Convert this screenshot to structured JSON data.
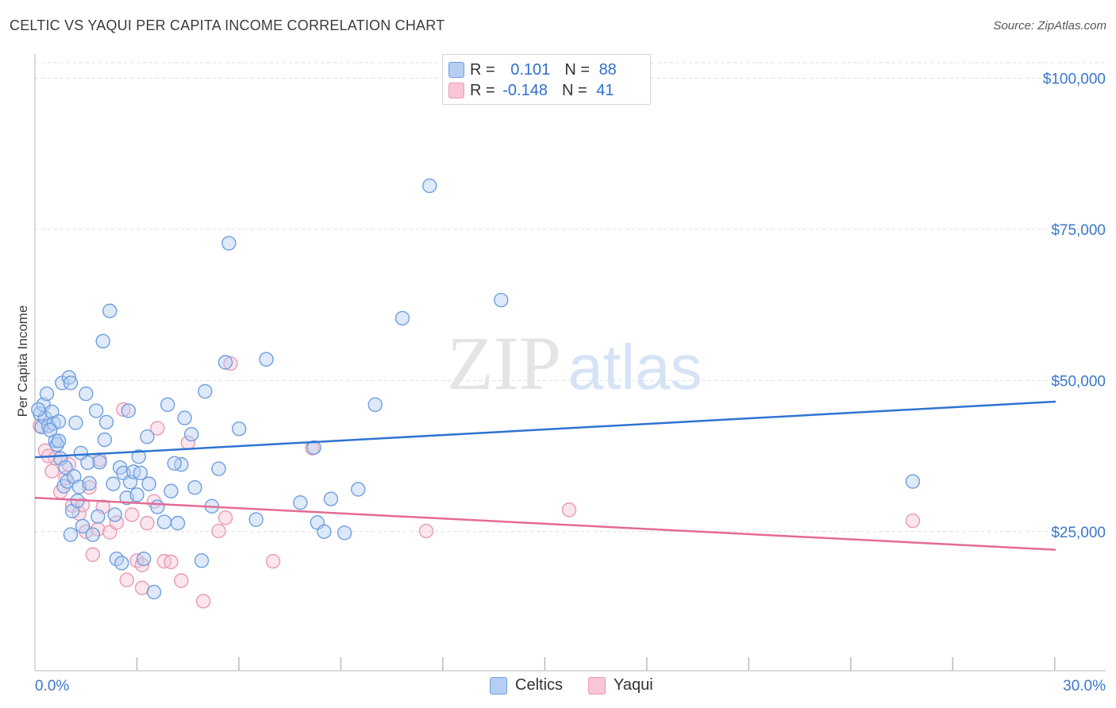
{
  "title": "CELTIC VS YAQUI PER CAPITA INCOME CORRELATION CHART",
  "source": "Source: ZipAtlas.com",
  "watermark": {
    "zip": "ZIP",
    "atlas": "atlas"
  },
  "legend": {
    "rows": [
      {
        "r_label": "R = ",
        "r_value": "0.101",
        "n_label": "N = ",
        "n_value": "88",
        "color": "#6f9fdf"
      },
      {
        "r_label": "R = ",
        "r_value": "-0.148",
        "n_label": "N = ",
        "n_value": "41",
        "color": "#e79ab4"
      }
    ]
  },
  "bottom_legend": [
    {
      "label": "Celtics",
      "color": "#6f9fdf"
    },
    {
      "label": "Yaqui",
      "color": "#e79ab4"
    }
  ],
  "colors": {
    "blue_point": "#6f9fdf",
    "blue_fill": "#b5cef2",
    "blue_line": "#2f74d0",
    "pink_point": "#e79ab4",
    "pink_fill": "#f8c6d6",
    "pink_line": "#e36b94",
    "axis_label": "#3a78cc",
    "grid": "#dedede"
  },
  "chart_data": {
    "type": "scatter",
    "title": "CELTIC VS YAQUI PER CAPITA INCOME CORRELATION CHART",
    "xlabel": "",
    "ylabel": "Per Capita Income",
    "xlim": [
      0,
      30
    ],
    "ylim": [
      2000,
      104000
    ],
    "x_tick_labels": [
      {
        "value": 0,
        "label": "0.0%"
      },
      {
        "value": 30,
        "label": "30.0%"
      }
    ],
    "y_ticks": [
      {
        "value": 25000,
        "label": "$25,000"
      },
      {
        "value": 50000,
        "label": "$50,000"
      },
      {
        "value": 75000,
        "label": "$75,000"
      },
      {
        "value": 100000,
        "label": "$100,000"
      }
    ],
    "series": [
      {
        "name": "Celtics",
        "R": 0.101,
        "N": 88,
        "trend": {
          "x": [
            0,
            30
          ],
          "y": [
            37300,
            46500
          ]
        },
        "points": [
          [
            0.15,
            44500
          ],
          [
            0.2,
            42300
          ],
          [
            0.25,
            46000
          ],
          [
            0.3,
            43800
          ],
          [
            0.35,
            47800
          ],
          [
            0.4,
            42500
          ],
          [
            0.5,
            44800
          ],
          [
            0.55,
            42900
          ],
          [
            0.6,
            40000
          ],
          [
            0.65,
            39400
          ],
          [
            0.7,
            43200
          ],
          [
            0.75,
            37100
          ],
          [
            0.8,
            49600
          ],
          [
            0.85,
            32500
          ],
          [
            0.9,
            35600
          ],
          [
            0.95,
            33300
          ],
          [
            1.0,
            50500
          ],
          [
            1.05,
            24500
          ],
          [
            1.1,
            28400
          ],
          [
            1.15,
            34100
          ],
          [
            1.2,
            43000
          ],
          [
            1.25,
            30100
          ],
          [
            1.3,
            32400
          ],
          [
            1.4,
            25900
          ],
          [
            1.5,
            47800
          ],
          [
            1.6,
            33000
          ],
          [
            1.7,
            24500
          ],
          [
            1.8,
            45000
          ],
          [
            1.85,
            27500
          ],
          [
            1.9,
            36500
          ],
          [
            2.0,
            56500
          ],
          [
            2.1,
            43100
          ],
          [
            2.2,
            61500
          ],
          [
            2.3,
            32900
          ],
          [
            2.4,
            20500
          ],
          [
            2.5,
            35600
          ],
          [
            2.55,
            19800
          ],
          [
            2.6,
            34700
          ],
          [
            2.7,
            30600
          ],
          [
            2.75,
            45000
          ],
          [
            2.8,
            33200
          ],
          [
            2.9,
            34900
          ],
          [
            3.0,
            31100
          ],
          [
            3.05,
            37400
          ],
          [
            3.1,
            34700
          ],
          [
            3.2,
            20500
          ],
          [
            3.3,
            40700
          ],
          [
            3.5,
            15000
          ],
          [
            3.6,
            29100
          ],
          [
            3.8,
            26600
          ],
          [
            3.9,
            46000
          ],
          [
            4.0,
            31700
          ],
          [
            4.2,
            26400
          ],
          [
            4.3,
            36100
          ],
          [
            4.4,
            43800
          ],
          [
            4.6,
            41100
          ],
          [
            4.9,
            20200
          ],
          [
            5.0,
            48200
          ],
          [
            5.2,
            29200
          ],
          [
            5.4,
            35400
          ],
          [
            5.6,
            53000
          ],
          [
            5.7,
            72700
          ],
          [
            6.0,
            42000
          ],
          [
            6.5,
            27000
          ],
          [
            6.8,
            53500
          ],
          [
            7.8,
            29800
          ],
          [
            8.2,
            38900
          ],
          [
            8.3,
            26500
          ],
          [
            8.5,
            25000
          ],
          [
            8.7,
            30400
          ],
          [
            9.1,
            24800
          ],
          [
            9.5,
            32000
          ],
          [
            10.0,
            46000
          ],
          [
            10.8,
            60300
          ],
          [
            11.6,
            82200
          ],
          [
            13.7,
            63300
          ],
          [
            25.8,
            33300
          ],
          [
            0.1,
            45200
          ],
          [
            0.45,
            41800
          ],
          [
            1.35,
            38000
          ],
          [
            2.05,
            40200
          ],
          [
            3.35,
            32900
          ],
          [
            0.7,
            40000
          ],
          [
            1.05,
            49600
          ],
          [
            1.55,
            36400
          ],
          [
            2.35,
            27800
          ],
          [
            4.1,
            36300
          ],
          [
            4.7,
            32300
          ]
        ]
      },
      {
        "name": "Yaqui",
        "R": -0.148,
        "N": 41,
        "trend": {
          "x": [
            0,
            30
          ],
          "y": [
            30600,
            22000
          ]
        },
        "points": [
          [
            0.15,
            42500
          ],
          [
            0.3,
            38400
          ],
          [
            0.5,
            35000
          ],
          [
            0.6,
            37200
          ],
          [
            0.75,
            31600
          ],
          [
            0.9,
            33900
          ],
          [
            1.0,
            36100
          ],
          [
            1.1,
            29300
          ],
          [
            1.3,
            28000
          ],
          [
            1.4,
            29400
          ],
          [
            1.5,
            25000
          ],
          [
            1.6,
            32300
          ],
          [
            1.7,
            21200
          ],
          [
            1.85,
            25400
          ],
          [
            2.0,
            29100
          ],
          [
            2.2,
            24900
          ],
          [
            2.4,
            26500
          ],
          [
            2.6,
            45200
          ],
          [
            2.7,
            17000
          ],
          [
            2.85,
            27800
          ],
          [
            3.0,
            20200
          ],
          [
            3.15,
            15700
          ],
          [
            3.3,
            26400
          ],
          [
            3.5,
            30000
          ],
          [
            3.6,
            42100
          ],
          [
            3.8,
            20100
          ],
          [
            4.0,
            20000
          ],
          [
            4.3,
            16900
          ],
          [
            4.5,
            39700
          ],
          [
            4.95,
            13500
          ],
          [
            5.4,
            25100
          ],
          [
            5.6,
            27300
          ],
          [
            5.75,
            52800
          ],
          [
            7.0,
            20100
          ],
          [
            8.15,
            38800
          ],
          [
            15.7,
            28600
          ],
          [
            11.5,
            25100
          ],
          [
            25.8,
            26800
          ],
          [
            1.9,
            36900
          ],
          [
            0.4,
            37500
          ],
          [
            3.15,
            19500
          ]
        ]
      }
    ]
  }
}
